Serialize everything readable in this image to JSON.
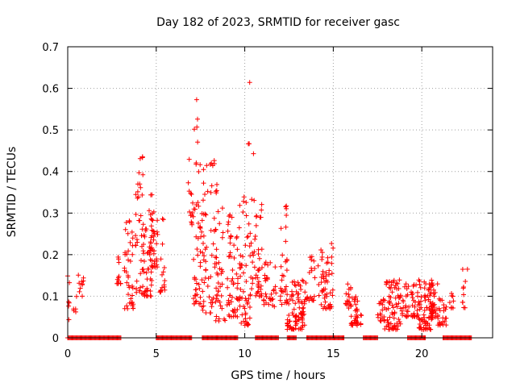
{
  "chart_data": {
    "type": "scatter",
    "title": "Day 182 of 2023, SRMTID for receiver gasc",
    "xlabel": "GPS time / hours",
    "ylabel": "SRMTID / TECUs",
    "xlim": [
      0,
      24
    ],
    "ylim": [
      0,
      0.7
    ],
    "x_ticks": [
      0,
      5,
      10,
      15,
      20
    ],
    "x_tick_labels": [
      "0",
      "5",
      "10",
      "15",
      "20"
    ],
    "y_ticks": [
      0,
      0.1,
      0.2,
      0.3,
      0.4,
      0.5,
      0.6,
      0.7
    ],
    "y_tick_labels": [
      "0",
      "0.1",
      "0.2",
      "0.3",
      "0.4",
      "0.5",
      "0.6",
      "0.7"
    ],
    "grid": true,
    "marker": "+",
    "color": "#ff0000",
    "zero_segments": [
      [
        0.0,
        3.0
      ],
      [
        5.0,
        7.0
      ],
      [
        7.6,
        9.6
      ],
      [
        10.6,
        11.9
      ],
      [
        12.4,
        12.9
      ],
      [
        13.5,
        15.6
      ],
      [
        16.7,
        17.5
      ],
      [
        19.2,
        20.2
      ],
      [
        21.2,
        22.8
      ]
    ],
    "clusters": [
      {
        "x": [
          0.0,
          0.1
        ],
        "y": [
          0.04,
          0.16
        ],
        "n": 6
      },
      {
        "x": [
          0.3,
          0.5
        ],
        "y": [
          0.06,
          0.1
        ],
        "n": 5
      },
      {
        "x": [
          0.6,
          0.9
        ],
        "y": [
          0.1,
          0.16
        ],
        "n": 10
      },
      {
        "x": [
          2.7,
          3.0
        ],
        "y": [
          0.13,
          0.2
        ],
        "n": 12
      },
      {
        "x": [
          3.2,
          3.7
        ],
        "y": [
          0.07,
          0.29
        ],
        "n": 40
      },
      {
        "x": [
          3.8,
          4.3
        ],
        "y": [
          0.1,
          0.44
        ],
        "n": 45
      },
      {
        "x": [
          4.3,
          4.8
        ],
        "y": [
          0.1,
          0.3
        ],
        "n": 40
      },
      {
        "x": [
          4.6,
          5.1
        ],
        "y": [
          0.17,
          0.36
        ],
        "n": 35
      },
      {
        "x": [
          5.2,
          5.5
        ],
        "y": [
          0.11,
          0.32
        ],
        "n": 16
      },
      {
        "x": [
          6.8,
          7.1
        ],
        "y": [
          0.27,
          0.44
        ],
        "n": 14
      },
      {
        "x": [
          7.1,
          7.5
        ],
        "y": [
          0.08,
          0.59
        ],
        "n": 45
      },
      {
        "x": [
          7.5,
          8.3
        ],
        "y": [
          0.06,
          0.43
        ],
        "n": 55
      },
      {
        "x": [
          8.3,
          8.9
        ],
        "y": [
          0.04,
          0.38
        ],
        "n": 45
      },
      {
        "x": [
          9.0,
          9.7
        ],
        "y": [
          0.05,
          0.3
        ],
        "n": 55
      },
      {
        "x": [
          9.7,
          10.3
        ],
        "y": [
          0.03,
          0.35
        ],
        "n": 50
      },
      {
        "x": [
          10.2,
          10.5
        ],
        "y": [
          0.44,
          0.65
        ],
        "n": 4
      },
      {
        "x": [
          10.3,
          11.0
        ],
        "y": [
          0.1,
          0.34
        ],
        "n": 50
      },
      {
        "x": [
          11.0,
          11.8
        ],
        "y": [
          0.07,
          0.19
        ],
        "n": 30
      },
      {
        "x": [
          12.0,
          12.4
        ],
        "y": [
          0.08,
          0.32
        ],
        "n": 30
      },
      {
        "x": [
          12.4,
          13.4
        ],
        "y": [
          0.02,
          0.14
        ],
        "n": 85
      },
      {
        "x": [
          13.4,
          14.2
        ],
        "y": [
          0.09,
          0.2
        ],
        "n": 25
      },
      {
        "x": [
          14.3,
          15.0
        ],
        "y": [
          0.07,
          0.23
        ],
        "n": 50
      },
      {
        "x": [
          15.7,
          16.0
        ],
        "y": [
          0.07,
          0.13
        ],
        "n": 16
      },
      {
        "x": [
          16.0,
          16.6
        ],
        "y": [
          0.03,
          0.1
        ],
        "n": 35
      },
      {
        "x": [
          17.5,
          17.9
        ],
        "y": [
          0.04,
          0.1
        ],
        "n": 20
      },
      {
        "x": [
          17.9,
          18.8
        ],
        "y": [
          0.02,
          0.14
        ],
        "n": 70
      },
      {
        "x": [
          18.8,
          19.3
        ],
        "y": [
          0.05,
          0.13
        ],
        "n": 22
      },
      {
        "x": [
          19.4,
          19.8
        ],
        "y": [
          0.05,
          0.13
        ],
        "n": 25
      },
      {
        "x": [
          19.8,
          20.6
        ],
        "y": [
          0.02,
          0.14
        ],
        "n": 80
      },
      {
        "x": [
          20.5,
          20.9
        ],
        "y": [
          0.05,
          0.13
        ],
        "n": 25
      },
      {
        "x": [
          20.9,
          21.4
        ],
        "y": [
          0.03,
          0.12
        ],
        "n": 28
      },
      {
        "x": [
          21.5,
          21.8
        ],
        "y": [
          0.07,
          0.11
        ],
        "n": 8
      },
      {
        "x": [
          22.3,
          22.6
        ],
        "y": [
          0.07,
          0.18
        ],
        "n": 10
      }
    ]
  }
}
